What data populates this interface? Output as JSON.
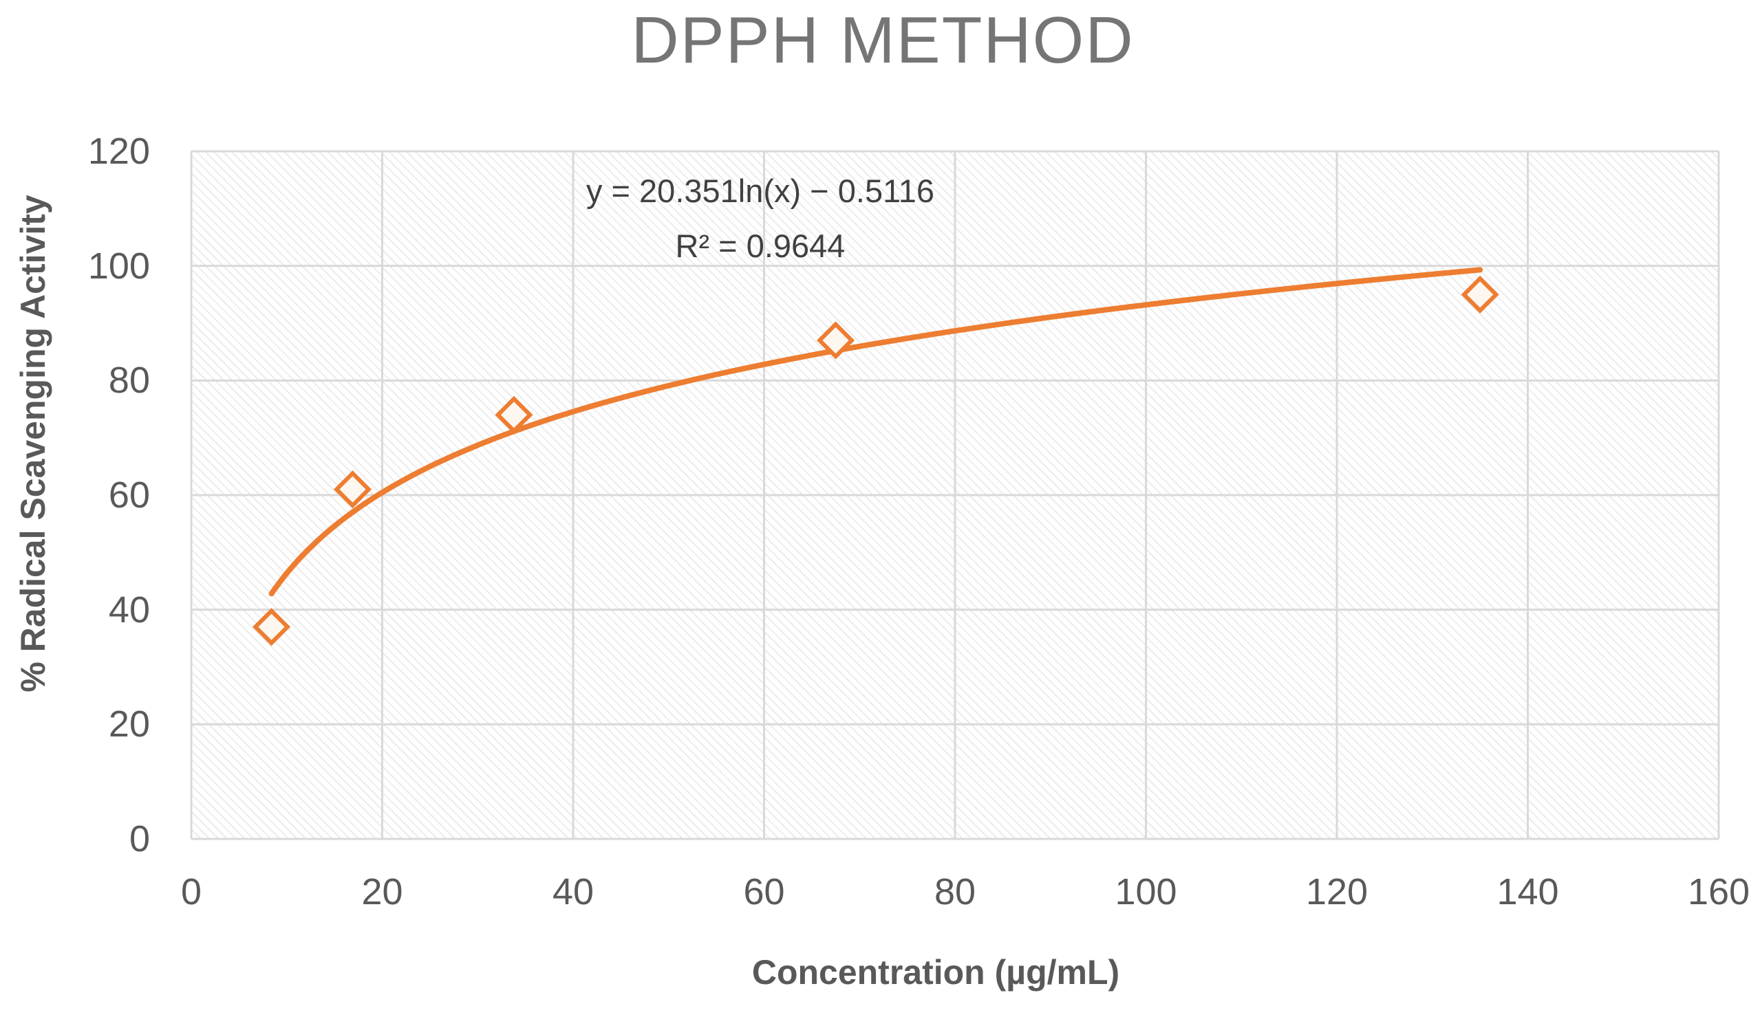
{
  "title": "DPPH METHOD",
  "chart_data": {
    "type": "scatter",
    "title": "DPPH METHOD",
    "xlabel": "Concentration (µg/mL)",
    "ylabel": "% Radical Scavenging Activity",
    "xlim": [
      0,
      160
    ],
    "ylim": [
      0,
      120
    ],
    "x_ticks": [
      0,
      20,
      40,
      60,
      80,
      100,
      120,
      140,
      160
    ],
    "y_ticks": [
      0,
      20,
      40,
      60,
      80,
      100,
      120
    ],
    "grid": true,
    "legend": false,
    "series": [
      {
        "name": "% radical scavenging activity",
        "marker": "open-diamond",
        "points": [
          {
            "x": 8.4,
            "y": 37
          },
          {
            "x": 16.9,
            "y": 61
          },
          {
            "x": 33.8,
            "y": 74
          },
          {
            "x": 67.5,
            "y": 87
          },
          {
            "x": 135,
            "y": 95
          }
        ]
      }
    ],
    "trendline": {
      "type": "logarithmic",
      "a": 20.351,
      "b": -0.5116,
      "x_start": 8.4,
      "x_end": 135,
      "equation_label": "y = 20.351ln(x) − 0.5116",
      "r2_label": "R² = 0.9644"
    },
    "colors": {
      "series": "#ED7D31",
      "marker_fill": "#FEF7EF",
      "gridline": "#D9D9D9",
      "tick_text": "#595959",
      "equation_text": "#404040",
      "title_text": "#757575"
    }
  }
}
